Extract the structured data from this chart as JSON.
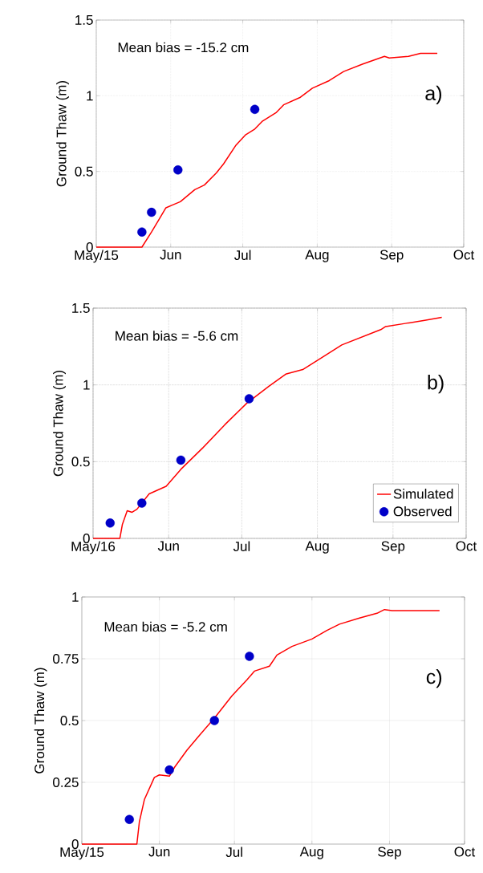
{
  "chart_data": [
    {
      "type": "line",
      "ylabel": "Ground Thaw (m)",
      "annotations": [
        "Mean bias = -15.2 cm",
        "a)"
      ],
      "xlim": [
        "2015-05-01",
        "2015-10-01"
      ],
      "ylim": [
        0,
        1.5
      ],
      "yticks": [
        0,
        0.5,
        1,
        1.5
      ],
      "xticks": [
        {
          "value": "2015-05-01",
          "label": "May/15"
        },
        {
          "value": "2015-06-01",
          "label": "Jun"
        },
        {
          "value": "2015-07-01",
          "label": "Jul"
        },
        {
          "value": "2015-08-01",
          "label": "Aug"
        },
        {
          "value": "2015-09-01",
          "label": "Sep"
        },
        {
          "value": "2015-10-01",
          "label": "Oct"
        }
      ],
      "grid": true,
      "legend": false,
      "series": [
        {
          "color": "#ff0000",
          "marker": "none",
          "x": [
            "2015-05-01",
            "2015-05-20",
            "2015-05-24",
            "2015-05-27",
            "2015-05-30",
            "2015-06-02",
            "2015-06-05",
            "2015-06-11",
            "2015-06-15",
            "2015-06-20",
            "2015-06-23",
            "2015-06-28",
            "2015-07-02",
            "2015-07-06",
            "2015-07-09",
            "2015-07-15",
            "2015-07-18",
            "2015-07-25",
            "2015-07-30",
            "2015-08-06",
            "2015-08-12",
            "2015-08-20",
            "2015-08-29",
            "2015-08-31",
            "2015-09-08",
            "2015-09-13",
            "2015-09-20"
          ],
          "values": [
            0,
            0,
            0.1,
            0.18,
            0.26,
            0.28,
            0.3,
            0.38,
            0.41,
            0.49,
            0.55,
            0.67,
            0.74,
            0.78,
            0.83,
            0.89,
            0.94,
            0.99,
            1.05,
            1.1,
            1.16,
            1.21,
            1.26,
            1.25,
            1.26,
            1.28,
            1.28
          ]
        },
        {
          "type": "scatter",
          "color": "#0000c8",
          "marker": "circle",
          "x": [
            "2015-05-20",
            "2015-05-24",
            "2015-06-04",
            "2015-07-06"
          ],
          "values": [
            0.1,
            0.23,
            0.51,
            0.91
          ]
        }
      ]
    },
    {
      "type": "line",
      "ylabel": "Ground Thaw (m)",
      "annotations": [
        "Mean bias = -5.6 cm",
        "b)"
      ],
      "xlim": [
        "2016-05-01",
        "2016-10-01"
      ],
      "ylim": [
        0,
        1.5
      ],
      "yticks": [
        0,
        0.5,
        1,
        1.5
      ],
      "xticks": [
        {
          "value": "2016-05-01",
          "label": "May/16"
        },
        {
          "value": "2016-06-01",
          "label": "Jun"
        },
        {
          "value": "2016-07-01",
          "label": "Jul"
        },
        {
          "value": "2016-08-01",
          "label": "Aug"
        },
        {
          "value": "2016-09-01",
          "label": "Sep"
        },
        {
          "value": "2016-10-01",
          "label": "Oct"
        }
      ],
      "grid": true,
      "legend": "bottom right",
      "series": [
        {
          "name": "Simulated",
          "color": "#ff0000",
          "marker": "none",
          "x": [
            "2016-05-01",
            "2016-05-12",
            "2016-05-13",
            "2016-05-15",
            "2016-05-17",
            "2016-05-19",
            "2016-05-24",
            "2016-05-31",
            "2016-06-06",
            "2016-06-15",
            "2016-06-24",
            "2016-07-03",
            "2016-07-12",
            "2016-07-19",
            "2016-07-26",
            "2016-08-04",
            "2016-08-11",
            "2016-08-19",
            "2016-08-27",
            "2016-08-29",
            "2016-09-06",
            "2016-09-14",
            "2016-09-21"
          ],
          "values": [
            0,
            0,
            0.09,
            0.18,
            0.17,
            0.19,
            0.29,
            0.34,
            0.45,
            0.59,
            0.74,
            0.88,
            0.99,
            1.07,
            1.1,
            1.19,
            1.26,
            1.31,
            1.36,
            1.38,
            1.4,
            1.42,
            1.44
          ]
        },
        {
          "type": "scatter",
          "name": "Observed",
          "color": "#0000c8",
          "marker": "circle",
          "x": [
            "2016-05-08",
            "2016-05-21",
            "2016-06-06",
            "2016-07-04"
          ],
          "values": [
            0.1,
            0.23,
            0.51,
            0.91
          ]
        }
      ]
    },
    {
      "type": "line",
      "ylabel": "Ground Thaw (m)",
      "annotations": [
        "Mean bias = -5.2 cm",
        "c)"
      ],
      "xlim": [
        "2015-05-01",
        "2015-10-01"
      ],
      "ylim": [
        0,
        1
      ],
      "yticks": [
        0,
        0.25,
        0.5,
        0.75,
        1
      ],
      "xticks": [
        {
          "value": "2015-05-01",
          "label": "May/15"
        },
        {
          "value": "2015-06-01",
          "label": "Jun"
        },
        {
          "value": "2015-07-01",
          "label": "Jul"
        },
        {
          "value": "2015-08-01",
          "label": "Aug"
        },
        {
          "value": "2015-09-01",
          "label": "Sep"
        },
        {
          "value": "2015-10-01",
          "label": "Oct"
        }
      ],
      "grid": true,
      "legend": false,
      "series": [
        {
          "color": "#ff0000",
          "marker": "none",
          "x": [
            "2015-05-01",
            "2015-05-23",
            "2015-05-24",
            "2015-05-26",
            "2015-05-30",
            "2015-06-01",
            "2015-06-05",
            "2015-06-07",
            "2015-06-12",
            "2015-06-17",
            "2015-06-23",
            "2015-06-30",
            "2015-07-06",
            "2015-07-09",
            "2015-07-15",
            "2015-07-18",
            "2015-07-24",
            "2015-08-01",
            "2015-08-07",
            "2015-08-12",
            "2015-08-20",
            "2015-08-27",
            "2015-08-30",
            "2015-09-02",
            "2015-09-21"
          ],
          "values": [
            0,
            0,
            0.09,
            0.18,
            0.27,
            0.28,
            0.275,
            0.31,
            0.38,
            0.44,
            0.51,
            0.6,
            0.665,
            0.7,
            0.72,
            0.765,
            0.8,
            0.83,
            0.865,
            0.89,
            0.915,
            0.934,
            0.949,
            0.945,
            0.945
          ]
        },
        {
          "type": "scatter",
          "color": "#0000c8",
          "marker": "circle",
          "x": [
            "2015-05-20",
            "2015-06-05",
            "2015-06-23",
            "2015-07-07"
          ],
          "values": [
            0.1,
            0.3,
            0.5,
            0.76
          ]
        }
      ]
    }
  ]
}
